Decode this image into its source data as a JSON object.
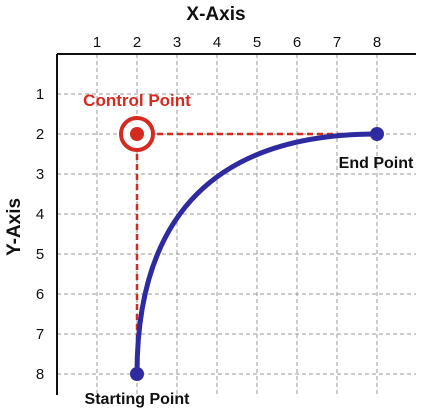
{
  "x_axis_title": "X-Axis",
  "y_axis_title": "Y-Axis",
  "x_ticks": [
    "1",
    "2",
    "3",
    "4",
    "5",
    "6",
    "7",
    "8"
  ],
  "y_ticks": [
    "1",
    "2",
    "3",
    "4",
    "5",
    "6",
    "7",
    "8"
  ],
  "grid_range": {
    "x": [
      0,
      8
    ],
    "y": [
      0,
      8
    ]
  },
  "points": {
    "start": {
      "label": "Starting Point",
      "x": 2,
      "y": 8
    },
    "control": {
      "label": "Control Point",
      "x": 2,
      "y": 2
    },
    "end": {
      "label": "End Point",
      "x": 8,
      "y": 2
    }
  },
  "colors": {
    "curve": "#2e2aa0",
    "control": "#d42a20",
    "guide": "#d42a20",
    "grid": "#9a9a9a",
    "border": "#111111"
  }
}
